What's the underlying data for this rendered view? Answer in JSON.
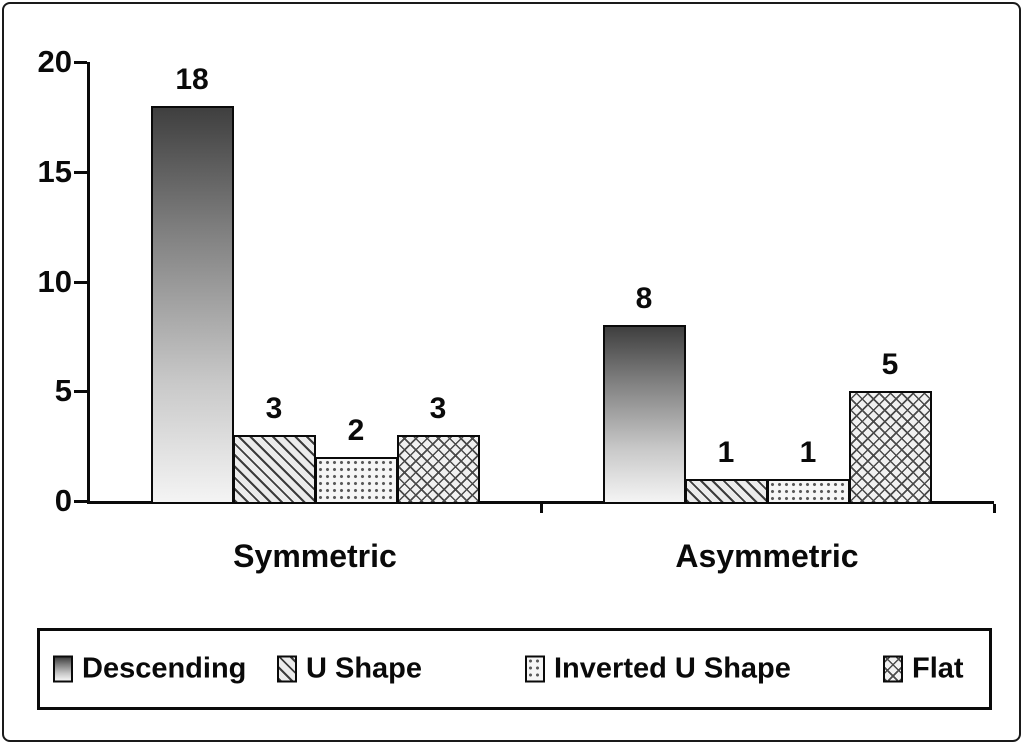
{
  "chart_data": {
    "type": "bar",
    "title": "",
    "xlabel": "",
    "ylabel": "",
    "categories": [
      "Symmetric",
      "Asymmetric"
    ],
    "series": [
      {
        "name": "Descending",
        "pattern": "gradient",
        "values": [
          18,
          8
        ]
      },
      {
        "name": "U Shape",
        "pattern": "diagonal",
        "values": [
          3,
          1
        ]
      },
      {
        "name": "Inverted U Shape",
        "pattern": "dots",
        "values": [
          2,
          1
        ]
      },
      {
        "name": "Flat",
        "pattern": "crosshatch",
        "values": [
          3,
          5
        ]
      }
    ],
    "ylim": [
      0,
      20
    ],
    "yticks": [
      0,
      5,
      10,
      15,
      20
    ],
    "grid": false,
    "data_labels": true,
    "legend_position": "bottom"
  },
  "colors": {
    "background": "#ffffff",
    "axis": "#0a0a0a",
    "text": "#0a0a0a",
    "bar_outline": "#0a0a0a"
  }
}
